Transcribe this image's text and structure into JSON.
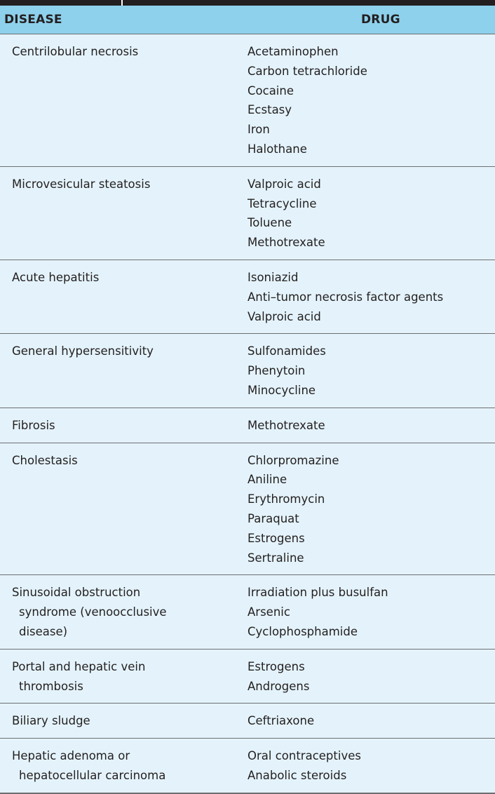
{
  "table": {
    "headers": [
      "DISEASE",
      "DRUG"
    ],
    "rows": [
      {
        "disease": [
          "Centrilobular necrosis"
        ],
        "drugs": [
          "Acetaminophen",
          "Carbon tetrachloride",
          "Cocaine",
          "Ecstasy",
          "Iron",
          "Halothane"
        ]
      },
      {
        "disease": [
          "Microvesicular steatosis"
        ],
        "drugs": [
          "Valproic acid",
          "Tetracycline",
          "Toluene",
          "Methotrexate"
        ]
      },
      {
        "disease": [
          "Acute hepatitis"
        ],
        "drugs": [
          "Isoniazid",
          "Anti–tumor necrosis factor agents",
          "Valproic acid"
        ]
      },
      {
        "disease": [
          "General hypersensitivity"
        ],
        "drugs": [
          "Sulfonamides",
          "Phenytoin",
          "Minocycline"
        ]
      },
      {
        "disease": [
          "Fibrosis"
        ],
        "drugs": [
          "Methotrexate"
        ]
      },
      {
        "disease": [
          "Cholestasis"
        ],
        "drugs": [
          "Chlorpromazine",
          "Aniline",
          "Erythromycin",
          "Paraquat",
          "Estrogens",
          "Sertraline"
        ]
      },
      {
        "disease": [
          "Sinusoidal obstruction",
          "syndrome (venoocclusive",
          "disease)"
        ],
        "drugs": [
          "Irradiation plus busulfan",
          "Arsenic",
          "Cyclophosphamide"
        ]
      },
      {
        "disease": [
          "Portal and hepatic vein",
          "thrombosis"
        ],
        "drugs": [
          "Estrogens",
          "Androgens"
        ]
      },
      {
        "disease": [
          "Biliary sludge"
        ],
        "drugs": [
          "Ceftriaxone"
        ]
      },
      {
        "disease": [
          "Hepatic adenoma or",
          "hepatocellular carcinoma"
        ],
        "drugs": [
          "Oral contraceptives",
          "Anabolic steroids"
        ]
      }
    ]
  }
}
